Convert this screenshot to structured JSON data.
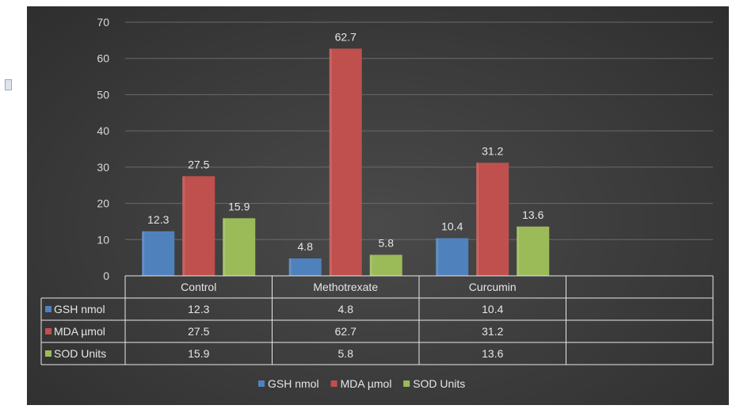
{
  "chart_data": {
    "type": "bar",
    "categories": [
      "Control",
      "Methotrexate",
      "Curcumin"
    ],
    "series": [
      {
        "name": "GSH nmol",
        "values": [
          12.3,
          4.8,
          10.4
        ],
        "color": "#4f81bd"
      },
      {
        "name": "MDA µmol",
        "values": [
          27.5,
          62.7,
          31.2
        ],
        "color": "#c0504d"
      },
      {
        "name": "SOD Units",
        "values": [
          15.9,
          5.8,
          13.6
        ],
        "color": "#9bbb59"
      }
    ],
    "y_ticks": [
      "0",
      "10",
      "20",
      "30",
      "40",
      "50",
      "60",
      "70"
    ],
    "ylim": [
      0,
      70
    ],
    "data_labels": true,
    "data_table": true,
    "legend_position": "bottom",
    "grid": true
  }
}
